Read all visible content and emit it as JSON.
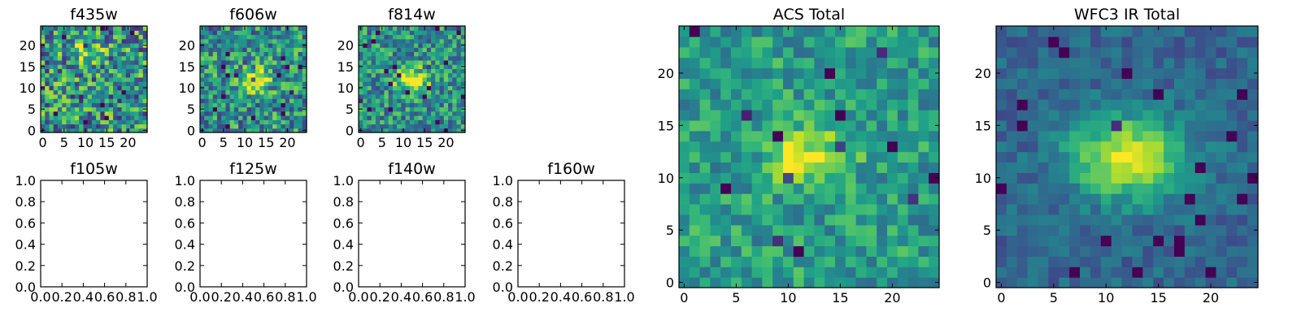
{
  "chart_data": [
    {
      "type": "heatmap",
      "title": "f435w",
      "empty": false,
      "colormap": "viridis",
      "grid_size": 25,
      "noise": 0.55,
      "peak": 0.25,
      "center": [
        10,
        19
      ],
      "sigma": [
        3.0,
        2.0
      ],
      "seed": 11,
      "xticks": [
        "0",
        "5",
        "10",
        "15",
        "20"
      ],
      "yticks": [
        "0",
        "5",
        "10",
        "15",
        "20"
      ],
      "xlim": [
        -0.5,
        24.5
      ],
      "ylim": [
        -0.5,
        24.5
      ]
    },
    {
      "type": "heatmap",
      "title": "f606w",
      "empty": false,
      "colormap": "viridis",
      "grid_size": 25,
      "noise": 0.45,
      "peak": 0.45,
      "center": [
        12,
        12
      ],
      "sigma": [
        3.0,
        2.0
      ],
      "seed": 23,
      "xticks": [
        "0",
        "5",
        "10",
        "15",
        "20"
      ],
      "yticks": [
        "0",
        "5",
        "10",
        "15",
        "20"
      ],
      "xlim": [
        -0.5,
        24.5
      ],
      "ylim": [
        -0.5,
        24.5
      ]
    },
    {
      "type": "heatmap",
      "title": "f814w",
      "empty": false,
      "colormap": "viridis",
      "grid_size": 25,
      "noise": 0.4,
      "peak": 0.6,
      "center": [
        12,
        12
      ],
      "sigma": [
        2.6,
        1.8
      ],
      "seed": 37,
      "xticks": [
        "0",
        "5",
        "10",
        "15",
        "20"
      ],
      "yticks": [
        "0",
        "5",
        "10",
        "15",
        "20"
      ],
      "xlim": [
        -0.5,
        24.5
      ],
      "ylim": [
        -0.5,
        24.5
      ]
    },
    {
      "type": "heatmap",
      "title": "f105w",
      "empty": true,
      "xticks": [
        "0.0",
        "0.2",
        "0.4",
        "0.6",
        "0.8",
        "1.0"
      ],
      "yticks": [
        "0.0",
        "0.2",
        "0.4",
        "0.6",
        "0.8",
        "1.0"
      ],
      "xlim": [
        0,
        1
      ],
      "ylim": [
        0,
        1
      ]
    },
    {
      "type": "heatmap",
      "title": "f125w",
      "empty": true,
      "xticks": [
        "0.0",
        "0.2",
        "0.4",
        "0.6",
        "0.8",
        "1.0"
      ],
      "yticks": [
        "0.0",
        "0.2",
        "0.4",
        "0.6",
        "0.8",
        "1.0"
      ],
      "xlim": [
        0,
        1
      ],
      "ylim": [
        0,
        1
      ]
    },
    {
      "type": "heatmap",
      "title": "f140w",
      "empty": true,
      "xticks": [
        "0.0",
        "0.2",
        "0.4",
        "0.6",
        "0.8",
        "1.0"
      ],
      "yticks": [
        "0.0",
        "0.2",
        "0.4",
        "0.6",
        "0.8",
        "1.0"
      ],
      "xlim": [
        0,
        1
      ],
      "ylim": [
        0,
        1
      ]
    },
    {
      "type": "heatmap",
      "title": "f160w",
      "empty": true,
      "xticks": [
        "0.0",
        "0.2",
        "0.4",
        "0.6",
        "0.8",
        "1.0"
      ],
      "yticks": [
        "0.0",
        "0.2",
        "0.4",
        "0.6",
        "0.8",
        "1.0"
      ],
      "xlim": [
        0,
        1
      ],
      "ylim": [
        0,
        1
      ]
    },
    {
      "type": "heatmap",
      "title": "ACS Total",
      "empty": false,
      "colormap": "viridis",
      "grid_size": 25,
      "noise": 0.28,
      "base": 0.55,
      "peak": 0.42,
      "center": [
        12,
        12
      ],
      "sigma": [
        2.6,
        1.9
      ],
      "seed": 53,
      "xticks": [
        "0",
        "5",
        "10",
        "15",
        "20"
      ],
      "yticks": [
        "0",
        "5",
        "10",
        "15",
        "20"
      ],
      "xlim": [
        -0.5,
        24.5
      ],
      "ylim": [
        -0.5,
        24.5
      ]
    },
    {
      "type": "heatmap",
      "title": "WFC3 IR Total",
      "empty": false,
      "colormap": "viridis",
      "grid_size": 25,
      "noise": 0.16,
      "base": 0.33,
      "peak": 0.62,
      "center": [
        12,
        12
      ],
      "sigma": [
        3.8,
        2.8
      ],
      "seed": 71,
      "xticks": [
        "0",
        "5",
        "10",
        "15",
        "20"
      ],
      "yticks": [
        "0",
        "5",
        "10",
        "15",
        "20"
      ],
      "xlim": [
        -0.5,
        24.5
      ],
      "ylim": [
        -0.5,
        24.5
      ]
    }
  ]
}
